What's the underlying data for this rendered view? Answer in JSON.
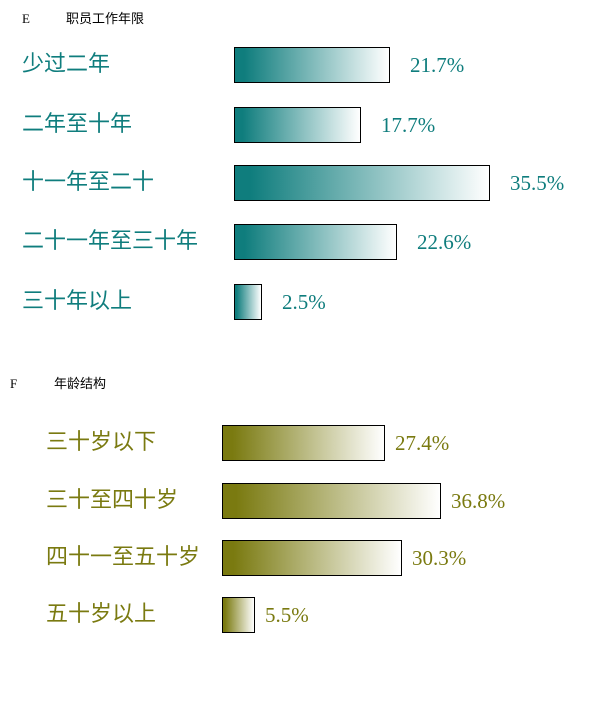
{
  "charts": [
    {
      "letter": "E",
      "heading": "职员工作年限",
      "color": "#0f7d7d",
      "chart_data": {
        "type": "bar",
        "orientation": "horizontal",
        "categories": [
          "少过二年",
          "二年至十年",
          "十一年至二十",
          "二十一年至三十年",
          "三十年以上"
        ],
        "values": [
          21.7,
          17.7,
          35.5,
          22.6,
          2.5
        ],
        "value_labels": [
          "21.7%",
          "17.7%",
          "35.5%",
          "22.6%",
          "2.5%"
        ],
        "unit": "%"
      }
    },
    {
      "letter": "F",
      "heading": "年龄结构",
      "color": "#7a7a10",
      "chart_data": {
        "type": "bar",
        "orientation": "horizontal",
        "categories": [
          "三十岁以下",
          "三十至四十岁",
          "四十一至五十岁",
          "五十岁以上"
        ],
        "values": [
          27.4,
          36.8,
          30.3,
          5.5
        ],
        "value_labels": [
          "27.4%",
          "36.8%",
          "30.3%",
          "5.5%"
        ],
        "unit": "%"
      }
    }
  ]
}
